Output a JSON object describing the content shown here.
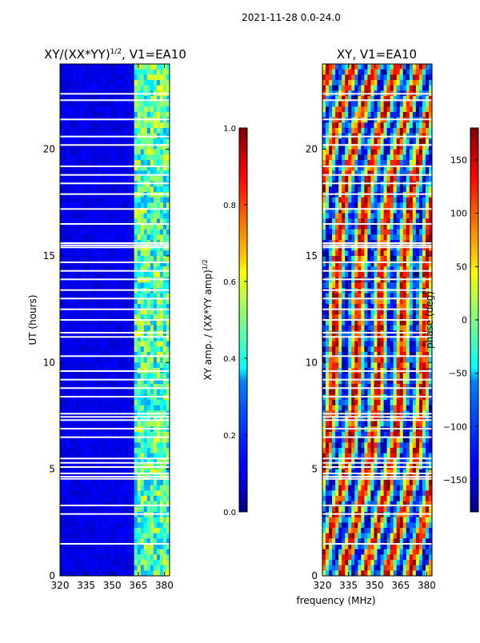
{
  "figure": {
    "suptitle": "2021-11-28 0.0-24.0"
  },
  "chart_data": [
    {
      "type": "heatmap",
      "title": "XY/(XX*YY)",
      "title_superscript": "1/2",
      "title_suffix": ", V1=EA10",
      "xlabel": "",
      "ylabel": "UT (hours)",
      "xlim": [
        320,
        383
      ],
      "ylim": [
        0,
        24
      ],
      "xticks": [
        320,
        335,
        350,
        365,
        380
      ],
      "yticks": [
        0,
        5,
        10,
        15,
        20
      ],
      "colorbar": {
        "label": "XY amp. / (XX*YY amp)",
        "label_superscript": "1/2",
        "range": [
          0.0,
          1.0
        ],
        "ticks": [
          "0.0",
          "0.2",
          "0.4",
          "0.6",
          "0.8",
          "1.0"
        ],
        "colormap": "jet"
      },
      "description_values": {
        "low_band_mhz": [
          320,
          362
        ],
        "low_band_level": 0.1,
        "high_band_mhz": [
          362,
          383
        ],
        "high_band_level": 0.45
      }
    },
    {
      "type": "heatmap",
      "title": "XY, V1=EA10",
      "xlabel": "frequency (MHz)",
      "ylabel": "",
      "xlim": [
        320,
        383
      ],
      "ylim": [
        0,
        24
      ],
      "xticks": [
        320,
        335,
        350,
        365,
        380
      ],
      "yticks": [
        0,
        5,
        10,
        15,
        20
      ],
      "colorbar": {
        "label": "phase (deg)",
        "range": [
          -180,
          180
        ],
        "ticks": [
          "−150",
          "−100",
          "−50",
          "0",
          "50",
          "100",
          "150"
        ],
        "colormap": "jet"
      }
    }
  ],
  "flagged_hours": [
    1.5,
    2.9,
    3.3,
    4.55,
    4.65,
    4.8,
    5.1,
    5.3,
    5.5,
    6.5,
    6.9,
    7.3,
    7.45,
    7.6,
    8.4,
    8.8,
    9.2,
    9.6,
    10.3,
    11.2,
    11.4,
    12.0,
    12.5,
    13.0,
    13.4,
    13.9,
    14.3,
    14.7,
    15.4,
    15.5,
    15.6,
    16.5,
    17.2,
    17.9,
    18.4,
    18.8,
    19.2,
    20.2,
    20.6,
    21.4,
    22.3,
    22.6
  ]
}
